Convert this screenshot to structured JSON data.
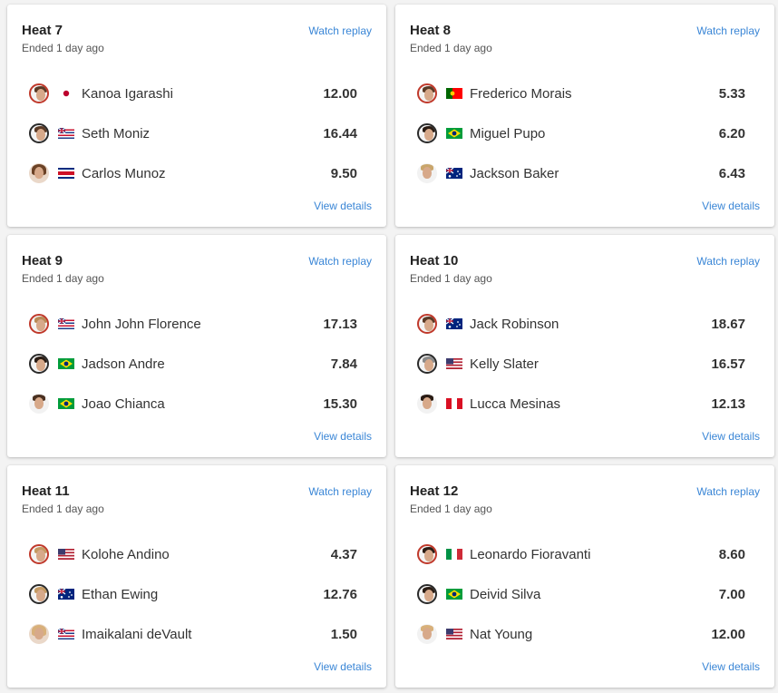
{
  "heats": [
    {
      "title": "Heat 7",
      "status": "Ended 1 day ago",
      "watch_label": "Watch replay",
      "details_label": "View details",
      "surfers": [
        {
          "name": "Kanoa Igarashi",
          "flag": "japan",
          "score": "12.00"
        },
        {
          "name": "Seth Moniz",
          "flag": "hawaii",
          "score": "16.44"
        },
        {
          "name": "Carlos Munoz",
          "flag": "costa-rica",
          "score": "9.50"
        }
      ]
    },
    {
      "title": "Heat 8",
      "status": "Ended 1 day ago",
      "watch_label": "Watch replay",
      "details_label": "View details",
      "surfers": [
        {
          "name": "Frederico Morais",
          "flag": "portugal",
          "score": "5.33"
        },
        {
          "name": "Miguel Pupo",
          "flag": "brazil",
          "score": "6.20"
        },
        {
          "name": "Jackson Baker",
          "flag": "australia",
          "score": "6.43"
        }
      ]
    },
    {
      "title": "Heat 9",
      "status": "Ended 1 day ago",
      "watch_label": "Watch replay",
      "details_label": "View details",
      "surfers": [
        {
          "name": "John John Florence",
          "flag": "hawaii",
          "score": "17.13"
        },
        {
          "name": "Jadson Andre",
          "flag": "brazil",
          "score": "7.84"
        },
        {
          "name": "Joao Chianca",
          "flag": "brazil",
          "score": "15.30"
        }
      ]
    },
    {
      "title": "Heat 10",
      "status": "Ended 1 day ago",
      "watch_label": "Watch replay",
      "details_label": "View details",
      "surfers": [
        {
          "name": "Jack Robinson",
          "flag": "australia",
          "score": "18.67"
        },
        {
          "name": "Kelly Slater",
          "flag": "usa",
          "score": "16.57"
        },
        {
          "name": "Lucca Mesinas",
          "flag": "peru",
          "score": "12.13"
        }
      ]
    },
    {
      "title": "Heat 11",
      "status": "Ended 1 day ago",
      "watch_label": "Watch replay",
      "details_label": "View details",
      "surfers": [
        {
          "name": "Kolohe Andino",
          "flag": "usa",
          "score": "4.37"
        },
        {
          "name": "Ethan Ewing",
          "flag": "australia",
          "score": "12.76"
        },
        {
          "name": "Imaikalani deVault",
          "flag": "hawaii",
          "score": "1.50"
        }
      ]
    },
    {
      "title": "Heat 12",
      "status": "Ended 1 day ago",
      "watch_label": "Watch replay",
      "details_label": "View details",
      "surfers": [
        {
          "name": "Leonardo Fioravanti",
          "flag": "italy",
          "score": "8.60"
        },
        {
          "name": "Deivid Silva",
          "flag": "brazil",
          "score": "7.00"
        },
        {
          "name": "Nat Young",
          "flag": "usa",
          "score": "12.00"
        }
      ]
    }
  ],
  "colors": {
    "link": "#3a86d6",
    "ring_red": "#c0392b",
    "ring_dark": "#2a2a2a"
  }
}
